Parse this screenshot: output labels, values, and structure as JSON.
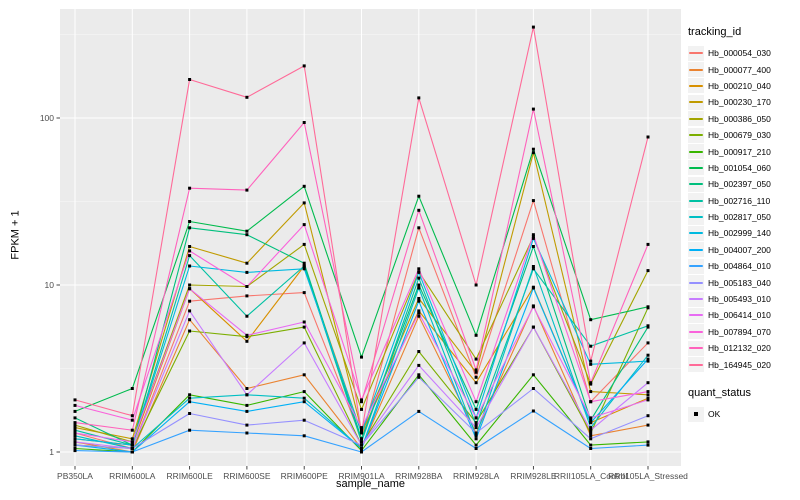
{
  "figure": {
    "x_axis_title": "sample_name",
    "y_axis_title": "FPKM + 1"
  },
  "legend": {
    "tracking_title": "tracking_id",
    "quant_title": "quant_status",
    "quant_items": [
      {
        "label": "OK",
        "symbol": "black-square"
      }
    ]
  },
  "colors": {
    "panel_bg": "#EBEBEB",
    "grid_major": "#FFFFFF",
    "grid_minor": "#F7F7F7",
    "tick_mark": "#333333",
    "tick_text": "#4D4D4D",
    "axis_title": "#000000",
    "legend_key_bg": "#F2F2F2",
    "point": "#000000"
  },
  "chart_data": {
    "type": "line",
    "title": "",
    "xlabel": "sample_name",
    "ylabel": "FPKM + 1",
    "y_scale": "log10",
    "ylim": [
      1,
      440
    ],
    "y_ticks": [
      1,
      10,
      100
    ],
    "y_tick_labels": [
      "1",
      "10",
      "100"
    ],
    "y_minor": [
      3.162,
      31.623,
      316.228
    ],
    "grid": true,
    "legend_position": "right",
    "point_shape": "filled-square",
    "x_categories": [
      "PB350LA",
      "RRIM600LA",
      "RRIM600LE",
      "RRIM600SE",
      "RRIM600PE",
      "RRIM901LA",
      "RRIM928BA",
      "RRIM928LA",
      "RRIM928LE",
      "RRII105LA_Control",
      "RRII105LA_Stressed"
    ],
    "series": [
      {
        "name": "Hb_000054_030",
        "color": "#F8766D",
        "values": [
          1.3,
          1.05,
          8.0,
          8.6,
          9.0,
          1.2,
          22,
          2.8,
          32,
          2.0,
          4.5
        ]
      },
      {
        "name": "Hb_000077_400",
        "color": "#EA8331",
        "values": [
          1.15,
          1.0,
          6.2,
          2.4,
          2.9,
          1.05,
          6.5,
          1.3,
          7.5,
          1.25,
          1.45
        ]
      },
      {
        "name": "Hb_000210_040",
        "color": "#D89000",
        "values": [
          1.2,
          1.1,
          9.5,
          4.6,
          13.0,
          1.3,
          7.0,
          2.6,
          9.7,
          1.5,
          2.1
        ]
      },
      {
        "name": "Hb_000230_170",
        "color": "#C09B00",
        "values": [
          1.4,
          1.2,
          17.0,
          13.5,
          31.0,
          1.35,
          8.3,
          3.0,
          62,
          2.3,
          2.2
        ]
      },
      {
        "name": "Hb_000386_050",
        "color": "#A3A500",
        "values": [
          1.45,
          1.15,
          10.0,
          9.8,
          17.5,
          1.8,
          12.0,
          3.6,
          19.5,
          2.55,
          12.2
        ]
      },
      {
        "name": "Hb_000679_030",
        "color": "#7CAE00",
        "values": [
          1.1,
          1.05,
          5.3,
          4.9,
          5.6,
          1.1,
          4.0,
          1.5,
          5.6,
          1.3,
          7.3
        ]
      },
      {
        "name": "Hb_000917_210",
        "color": "#39B600",
        "values": [
          1.05,
          1.0,
          2.2,
          1.9,
          2.3,
          1.02,
          2.9,
          1.1,
          2.9,
          1.1,
          1.15
        ]
      },
      {
        "name": "Hb_001054_060",
        "color": "#00BB4E",
        "values": [
          1.75,
          2.4,
          24,
          21,
          39,
          3.7,
          34,
          5.0,
          65,
          6.2,
          7.4
        ]
      },
      {
        "name": "Hb_002397_050",
        "color": "#00BF7D",
        "values": [
          1.6,
          1.1,
          22,
          20,
          13.5,
          1.2,
          10,
          1.8,
          17,
          1.55,
          5.6
        ]
      },
      {
        "name": "Hb_002716_110",
        "color": "#00C1A3",
        "values": [
          1.35,
          1.1,
          15,
          6.5,
          13,
          1.15,
          11,
          1.45,
          12.5,
          4.3,
          5.7
        ]
      },
      {
        "name": "Hb_002817_050",
        "color": "#00BFC4",
        "values": [
          1.25,
          1.05,
          2.1,
          2.2,
          2.1,
          1.05,
          9.6,
          1.25,
          12.9,
          1.4,
          3.8
        ]
      },
      {
        "name": "Hb_002999_140",
        "color": "#00BAE0",
        "values": [
          1.2,
          1.1,
          13,
          11.9,
          12.5,
          1.3,
          11.9,
          1.6,
          19,
          3.35,
          3.5
        ]
      },
      {
        "name": "Hb_004007_200",
        "color": "#00B0F6",
        "values": [
          1.1,
          1.0,
          2.0,
          1.75,
          2.0,
          1.05,
          8.0,
          1.2,
          9.6,
          1.5,
          3.6
        ]
      },
      {
        "name": "Hb_004864_010",
        "color": "#35A2FF",
        "values": [
          1.02,
          1.0,
          1.35,
          1.3,
          1.25,
          1.0,
          1.75,
          1.05,
          1.76,
          1.05,
          1.1
        ]
      },
      {
        "name": "Hb_005183_040",
        "color": "#9590FF",
        "values": [
          1.1,
          1.05,
          1.7,
          1.45,
          1.55,
          1.1,
          2.8,
          1.3,
          2.4,
          1.2,
          1.65
        ]
      },
      {
        "name": "Hb_005493_010",
        "color": "#C77CFF",
        "values": [
          1.15,
          1.05,
          7.0,
          2.2,
          4.5,
          1.1,
          3.3,
          1.4,
          5.6,
          1.35,
          2.6
        ]
      },
      {
        "name": "Hb_006414_010",
        "color": "#E76BF3",
        "values": [
          1.3,
          1.15,
          9.5,
          5.0,
          6.0,
          1.4,
          6.8,
          1.6,
          7.4,
          1.6,
          2.05
        ]
      },
      {
        "name": "Hb_007894_070",
        "color": "#FA62DB",
        "values": [
          1.9,
          1.55,
          16,
          9.8,
          23,
          2.05,
          12.5,
          2.0,
          20,
          2.0,
          2.3
        ]
      },
      {
        "name": "Hb_012132_020",
        "color": "#FF62BC",
        "values": [
          1.5,
          1.35,
          38,
          37,
          94,
          2.0,
          28,
          3.1,
          113,
          2.6,
          17.5
        ]
      },
      {
        "name": "Hb_164945_020",
        "color": "#FF6A98",
        "values": [
          2.05,
          1.65,
          170,
          133,
          205,
          1.3,
          132,
          10,
          350,
          3.5,
          77
        ]
      }
    ]
  }
}
